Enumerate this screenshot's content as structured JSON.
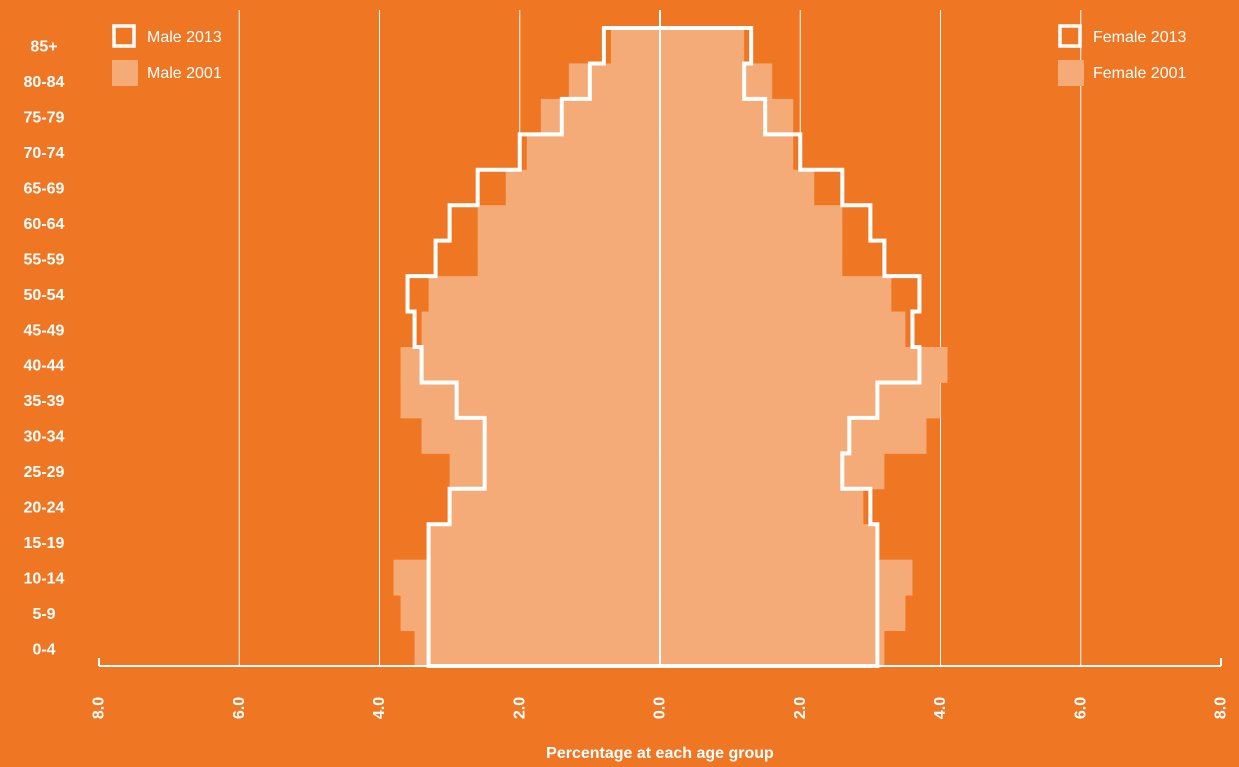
{
  "colors": {
    "background": "#EF7622",
    "fill_2001": "#F5AB77",
    "line_2013": "#FFFFFF",
    "gridline": "#FFFFFF"
  },
  "chart_data": {
    "type": "population-pyramid",
    "title": "",
    "xlabel": "Percentage at each age group",
    "ylabel": "",
    "x_range": [
      -8.0,
      8.0
    ],
    "x_ticks": [
      -8,
      -6,
      -4,
      -2,
      0,
      2,
      4,
      6,
      8
    ],
    "x_tick_labels": [
      "8.0",
      "6.0",
      "4.0",
      "2.0",
      "0.0",
      "2.0",
      "4.0",
      "6.0",
      "8.0"
    ],
    "grid": true,
    "age_groups": [
      "0-4",
      "5-9",
      "10-14",
      "15-19",
      "20-24",
      "25-29",
      "30-34",
      "35-39",
      "40-44",
      "45-49",
      "50-54",
      "55-59",
      "60-64",
      "65-69",
      "70-74",
      "75-79",
      "80-84",
      "85+"
    ],
    "series": [
      {
        "name": "Male 2001",
        "side": "left",
        "style": "filled",
        "values": [
          3.5,
          3.7,
          3.8,
          3.3,
          3.0,
          3.0,
          3.4,
          3.7,
          3.7,
          3.4,
          3.3,
          2.6,
          2.6,
          2.2,
          1.9,
          1.7,
          1.3,
          0.7
        ]
      },
      {
        "name": "Male 2013",
        "side": "left",
        "style": "outline",
        "values": [
          3.3,
          3.3,
          3.3,
          3.3,
          3.0,
          2.5,
          2.5,
          2.9,
          3.4,
          3.5,
          3.6,
          3.2,
          3.0,
          2.6,
          2.0,
          1.4,
          1.0,
          0.8
        ]
      },
      {
        "name": "Female 2001",
        "side": "right",
        "style": "filled",
        "values": [
          3.2,
          3.5,
          3.6,
          3.1,
          2.9,
          3.2,
          3.8,
          4.0,
          4.1,
          3.5,
          3.3,
          2.6,
          2.6,
          2.2,
          1.9,
          1.9,
          1.6,
          1.2
        ]
      },
      {
        "name": "Female 2013",
        "side": "right",
        "style": "outline",
        "values": [
          3.1,
          3.1,
          3.1,
          3.1,
          3.0,
          2.6,
          2.7,
          3.1,
          3.7,
          3.6,
          3.7,
          3.2,
          3.0,
          2.6,
          2.0,
          1.5,
          1.2,
          1.3
        ]
      }
    ],
    "legend": [
      {
        "label": "Male 2013",
        "style": "outline",
        "placement": "top-left"
      },
      {
        "label": "Male 2001",
        "style": "filled",
        "placement": "top-left"
      },
      {
        "label": "Female 2013",
        "style": "outline",
        "placement": "top-right"
      },
      {
        "label": "Female 2001",
        "style": "filled",
        "placement": "top-right"
      }
    ]
  }
}
